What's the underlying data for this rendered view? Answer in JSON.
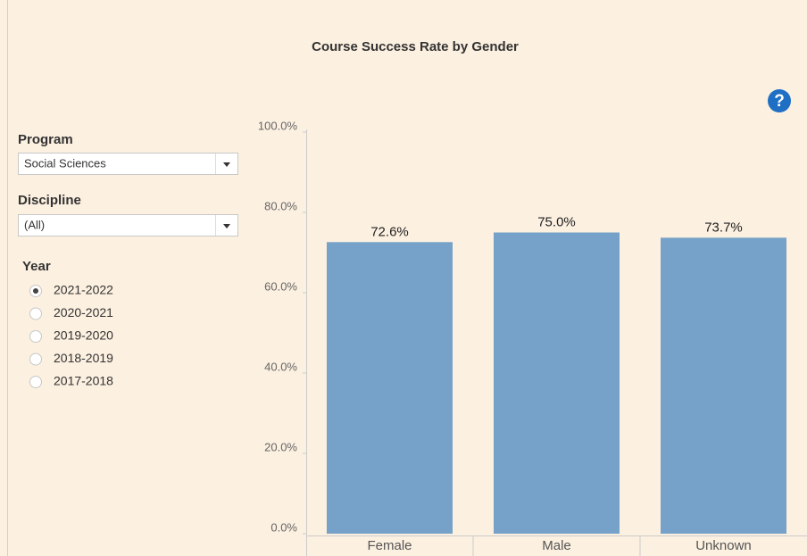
{
  "filters": {
    "program_label": "Program",
    "program_value": "Social Sciences",
    "discipline_label": "Discipline",
    "discipline_value": "(All)",
    "year_label": "Year",
    "year_options": [
      "2021-2022",
      "2020-2021",
      "2019-2020",
      "2018-2019",
      "2017-2018"
    ],
    "year_selected": 0
  },
  "help_icon": "?",
  "chart_data": {
    "type": "bar",
    "title": "Course Success Rate by Gender",
    "categories": [
      "Female",
      "Male",
      "Unknown"
    ],
    "values": [
      72.6,
      75.0,
      73.7
    ],
    "value_labels": [
      "72.6%",
      "75.0%",
      "73.7%"
    ],
    "color": "#76a1c8",
    "ylim": [
      0,
      100
    ],
    "yticks": [
      {
        "value": 0,
        "label": "0.0%"
      },
      {
        "value": 20,
        "label": "20.0%"
      },
      {
        "value": 40,
        "label": "40.0%"
      },
      {
        "value": 60,
        "label": "60.0%"
      },
      {
        "value": 80,
        "label": "80.0%"
      },
      {
        "value": 100,
        "label": "100.0%"
      }
    ],
    "grid": false
  }
}
